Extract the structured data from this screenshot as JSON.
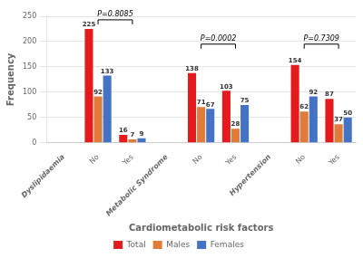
{
  "chart_data": {
    "type": "bar",
    "categories": [
      "Dyslipidaemia",
      "No",
      "Yes",
      "Metabolic Syndrome",
      "No",
      "Yes",
      "Hypertension",
      "No",
      "Yes"
    ],
    "series": [
      {
        "name": "Total",
        "color": "#e41a1c",
        "values": [
          null,
          225,
          16,
          null,
          138,
          103,
          null,
          154,
          87
        ]
      },
      {
        "name": "Males",
        "color": "#e07b39",
        "values": [
          null,
          92,
          7,
          null,
          71,
          28,
          null,
          62,
          37
        ]
      },
      {
        "name": "Females",
        "color": "#4472c4",
        "values": [
          null,
          133,
          9,
          null,
          67,
          75,
          null,
          92,
          50
        ]
      }
    ],
    "xlabel": "Cardiometabolic risk factors",
    "ylabel": "Frequency",
    "ylim": [
      0,
      250
    ],
    "yticks": [
      0,
      50,
      100,
      150,
      200,
      250
    ],
    "grid": true,
    "data_labels": true,
    "legend": "bottom",
    "annotations": [
      {
        "text": "P=0.8085",
        "x_start": 1,
        "x_end": 2,
        "y": 243
      },
      {
        "text": "P=0.0002",
        "x_start": 4,
        "x_end": 5,
        "y": 195
      },
      {
        "text": "P=0.7309",
        "x_start": 7,
        "x_end": 8,
        "y": 195
      }
    ]
  }
}
